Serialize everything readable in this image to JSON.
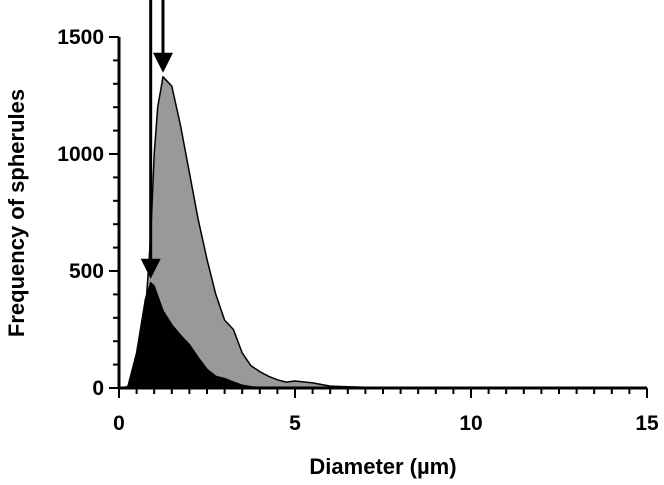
{
  "chart_data": {
    "type": "area",
    "xlabel": "Diameter (µm)",
    "ylabel": "Frequency of spherules",
    "xlim": [
      0,
      15
    ],
    "ylim": [
      0,
      1500
    ],
    "x_ticks": [
      "0",
      "5",
      "10",
      "15"
    ],
    "y_ticks": [
      "0",
      "500",
      "1000",
      "1500"
    ],
    "grid": false,
    "legend": "none",
    "series": [
      {
        "color": "#999999",
        "points": [
          [
            0,
            0
          ],
          [
            0.25,
            5
          ],
          [
            0.5,
            80
          ],
          [
            0.75,
            320
          ],
          [
            0.9,
            650
          ],
          [
            1.0,
            1000
          ],
          [
            1.1,
            1200
          ],
          [
            1.25,
            1330
          ],
          [
            1.5,
            1290
          ],
          [
            1.75,
            1120
          ],
          [
            2.0,
            920
          ],
          [
            2.25,
            720
          ],
          [
            2.5,
            550
          ],
          [
            2.75,
            400
          ],
          [
            3.0,
            290
          ],
          [
            3.25,
            250
          ],
          [
            3.5,
            150
          ],
          [
            3.75,
            95
          ],
          [
            4.0,
            70
          ],
          [
            4.25,
            50
          ],
          [
            4.5,
            35
          ],
          [
            4.75,
            25
          ],
          [
            5.0,
            30
          ],
          [
            5.5,
            22
          ],
          [
            6.0,
            8
          ],
          [
            6.5,
            5
          ],
          [
            7,
            3
          ],
          [
            8,
            3
          ],
          [
            9,
            2
          ],
          [
            10,
            2
          ],
          [
            11,
            2
          ],
          [
            12,
            2
          ],
          [
            12.5,
            1
          ],
          [
            12.6,
            0
          ]
        ],
        "mode": "arrow",
        "mode_x": 1.25
      },
      {
        "color": "#000000",
        "points": [
          [
            0,
            0
          ],
          [
            0.25,
            5
          ],
          [
            0.5,
            150
          ],
          [
            0.75,
            380
          ],
          [
            0.9,
            450
          ],
          [
            1.0,
            435
          ],
          [
            1.25,
            330
          ],
          [
            1.5,
            270
          ],
          [
            1.75,
            225
          ],
          [
            2.0,
            185
          ],
          [
            2.25,
            130
          ],
          [
            2.5,
            80
          ],
          [
            2.75,
            50
          ],
          [
            3.0,
            40
          ],
          [
            3.25,
            25
          ],
          [
            3.5,
            12
          ],
          [
            3.75,
            5
          ],
          [
            4.0,
            2
          ],
          [
            4.3,
            0
          ]
        ],
        "mode": "arrow",
        "mode_x": 0.9
      }
    ]
  }
}
